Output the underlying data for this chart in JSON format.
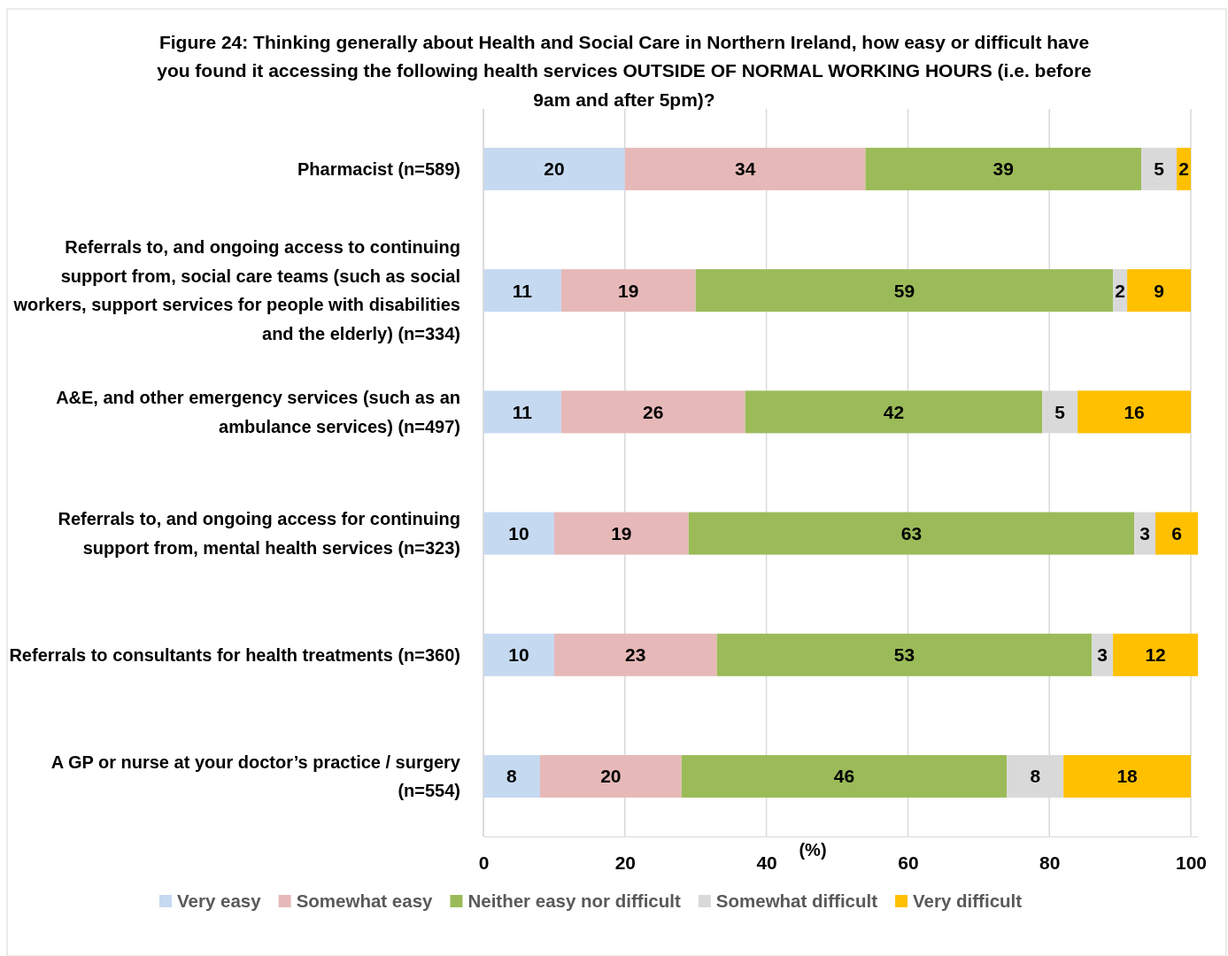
{
  "chart_data": {
    "type": "bar",
    "orientation": "horizontal",
    "stacked": true,
    "title": "Figure 24: Thinking generally about Health and Social Care in Northern Ireland, how easy or difficult have you found it accessing the following health services OUTSIDE OF NORMAL WORKING HOURS (i.e. before 9am and after 5pm)?",
    "xlabel": "(%)",
    "categories": [
      "Pharmacist (n=589)",
      "Referrals to, and ongoing access to continuing support from, social care teams (such as social workers, support services for people with disabilities and the elderly) (n=334)",
      "A&E, and other emergency services (such as an ambulance services) (n=497)",
      "Referrals to, and ongoing access for continuing support from, mental health services (n=323)",
      "Referrals to consultants for health treatments (n=360)",
      "A GP or nurse at your doctor’s practice / surgery (n=554)"
    ],
    "series": [
      {
        "name": "Very easy",
        "color": "#c5d9f1",
        "values": [
          20,
          11,
          11,
          10,
          10,
          8
        ]
      },
      {
        "name": "Somewhat easy",
        "color": "#e6b9b8",
        "values": [
          34,
          19,
          26,
          19,
          23,
          20
        ]
      },
      {
        "name": "Neither easy nor difficult",
        "color": "#9bbb59",
        "values": [
          39,
          59,
          42,
          63,
          53,
          46
        ]
      },
      {
        "name": "Somewhat difficult",
        "color": "#d9d9d9",
        "values": [
          5,
          2,
          5,
          3,
          3,
          8
        ]
      },
      {
        "name": "Very difficult",
        "color": "#ffc000",
        "values": [
          2,
          9,
          16,
          6,
          12,
          18
        ]
      }
    ],
    "xlim": [
      0,
      101
    ],
    "xticks": [
      0,
      20,
      40,
      60,
      80,
      100
    ],
    "grid": "x",
    "data_labels": true,
    "legend": "bottom"
  }
}
